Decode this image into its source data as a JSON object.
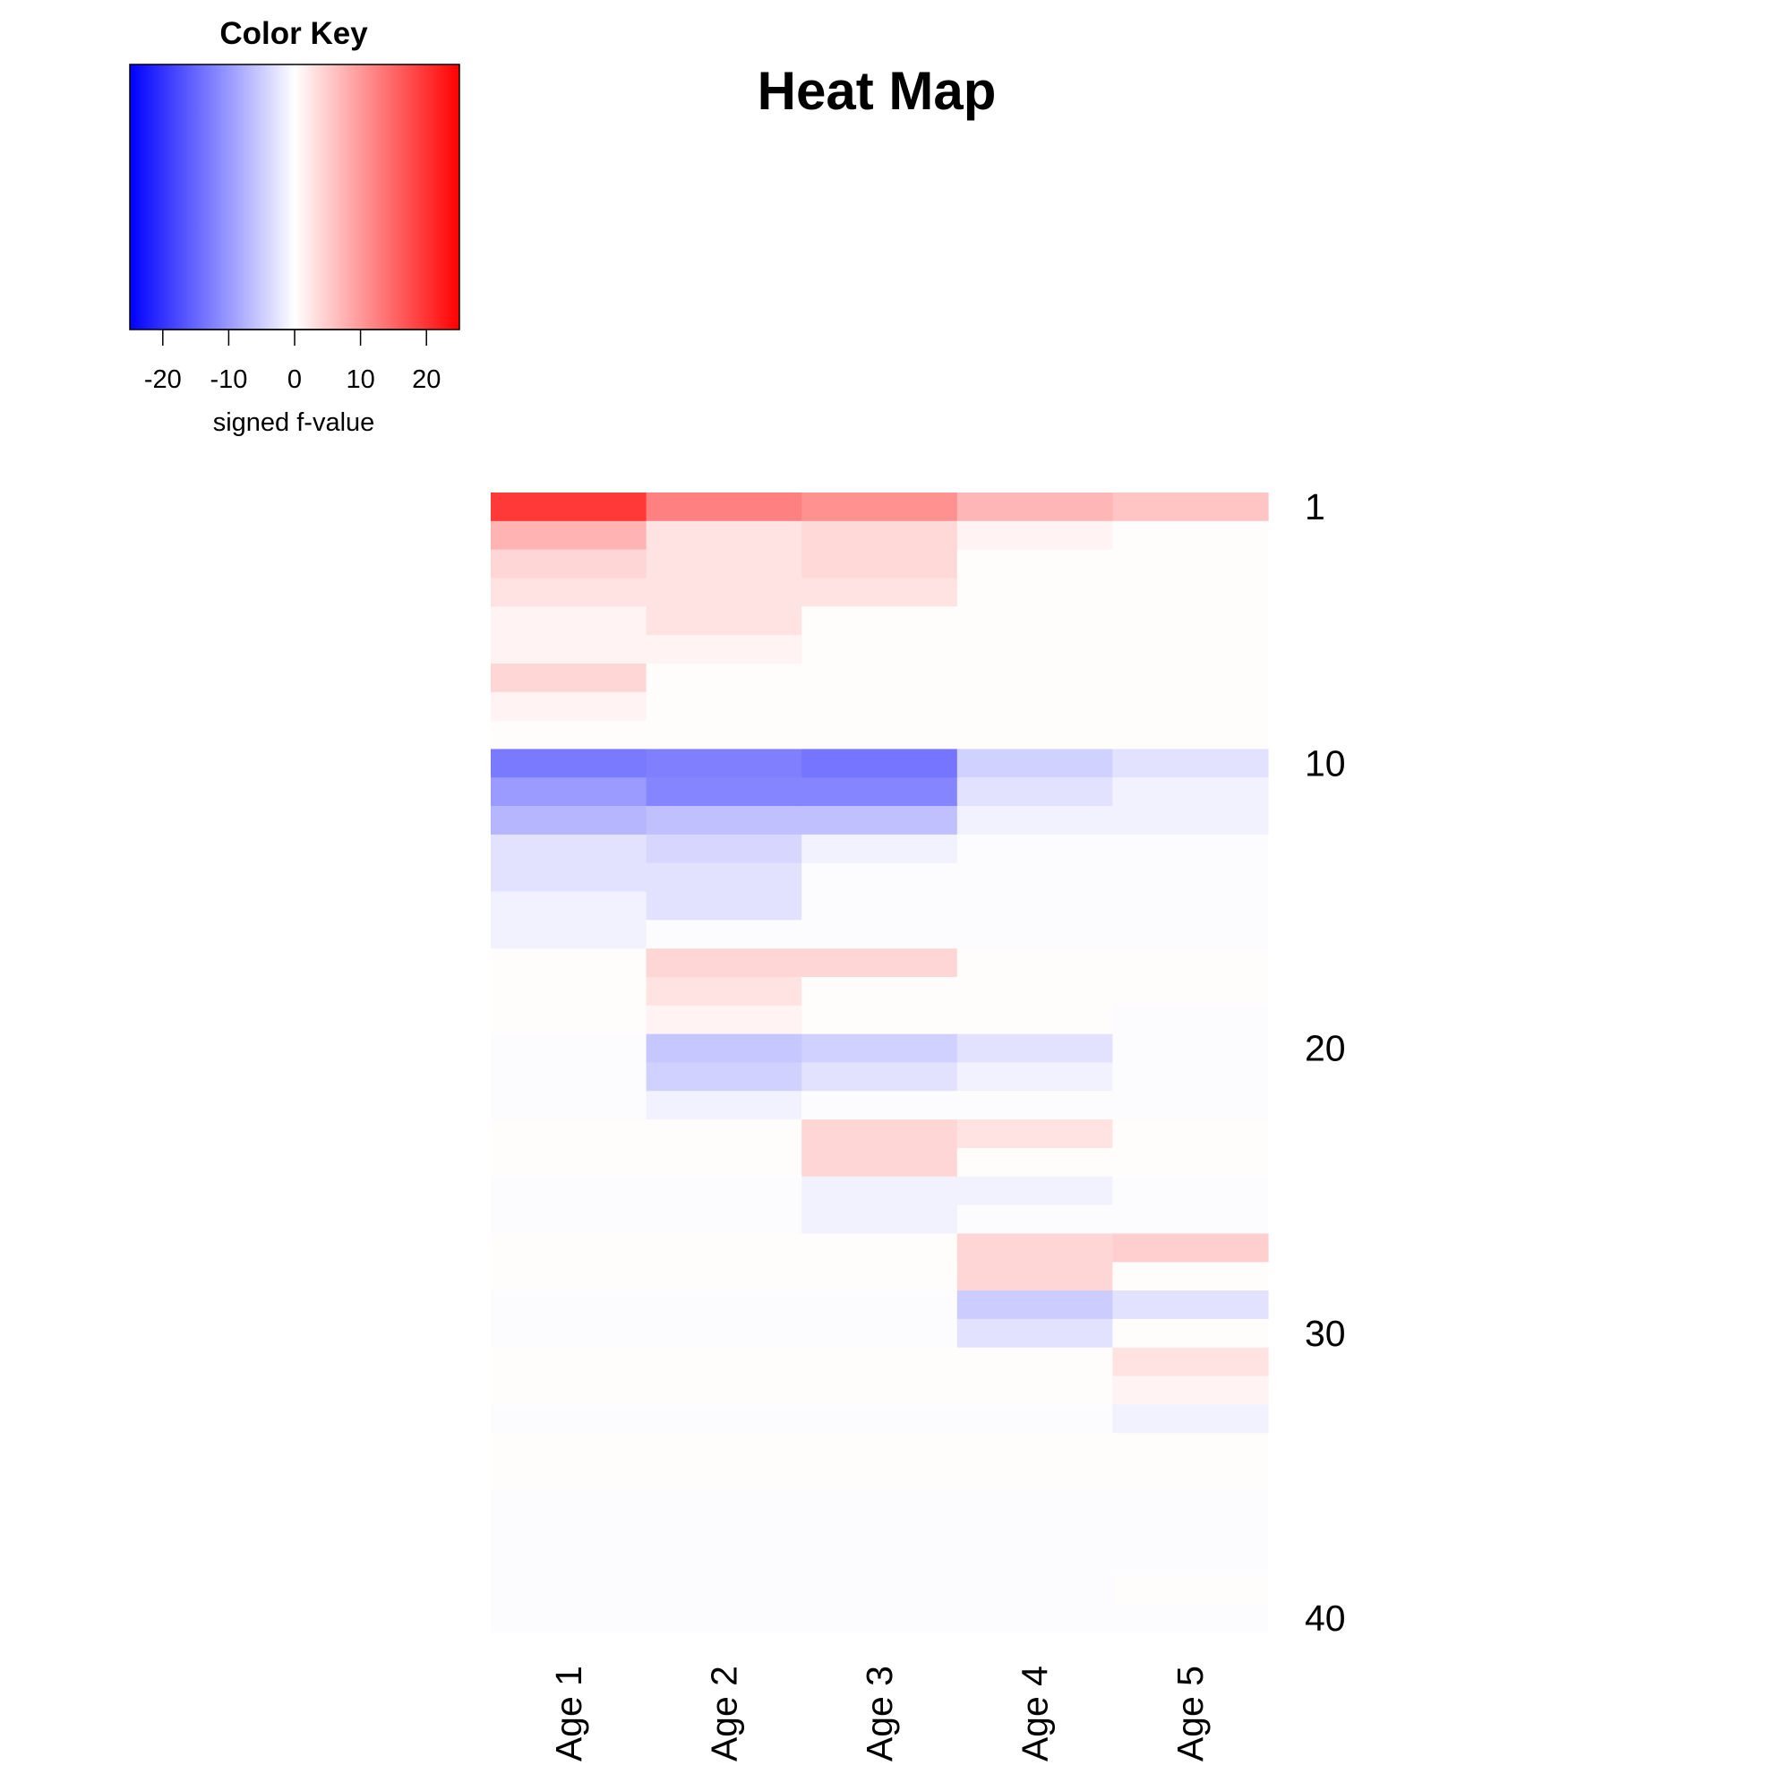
{
  "chart_data": {
    "type": "heatmap",
    "title": "Heat Map",
    "color_key": {
      "title": "Color Key",
      "xlabel": "signed f-value",
      "ticks": [
        -20,
        -10,
        0,
        10,
        20
      ],
      "tick_labels": [
        "-20",
        "-10",
        "0",
        "10",
        "20"
      ],
      "range": [
        -25,
        25
      ],
      "colors": {
        "low": "#0000ff",
        "mid": "#ffffff",
        "high": "#ff0000"
      }
    },
    "columns": [
      "Age 1",
      "Age 2",
      "Age 3",
      "Age 4",
      "Age 5"
    ],
    "row_count": 40,
    "row_labels": [
      {
        "row": 1,
        "label": "1"
      },
      {
        "row": 10,
        "label": "10"
      },
      {
        "row": 20,
        "label": "20"
      },
      {
        "row": 30,
        "label": "30"
      },
      {
        "row": 40,
        "label": "40"
      }
    ],
    "values": [
      [
        19.5,
        12.5,
        10.8,
        7.2,
        5.8
      ],
      [
        7.5,
        2.8,
        3.8,
        1.2,
        0.3
      ],
      [
        4.0,
        2.8,
        3.8,
        0.3,
        0.3
      ],
      [
        2.8,
        2.8,
        2.8,
        0.3,
        0.3
      ],
      [
        1.2,
        2.8,
        0.3,
        0.3,
        0.3
      ],
      [
        1.2,
        1.2,
        0.3,
        0.3,
        0.3
      ],
      [
        4.0,
        0.3,
        0.3,
        0.3,
        0.3
      ],
      [
        1.2,
        0.3,
        0.3,
        0.3,
        0.3
      ],
      [
        0.3,
        0.3,
        0.3,
        0.3,
        0.3
      ],
      [
        -13.0,
        -12.5,
        -13.5,
        -4.5,
        -2.8
      ],
      [
        -9.8,
        -12.0,
        -12.0,
        -2.8,
        -1.3
      ],
      [
        -7.2,
        -6.2,
        -6.2,
        -1.3,
        -1.3
      ],
      [
        -2.8,
        -4.0,
        -1.3,
        -0.3,
        -0.3
      ],
      [
        -2.8,
        -2.8,
        -0.3,
        -0.3,
        -0.3
      ],
      [
        -1.3,
        -2.8,
        -0.3,
        -0.3,
        -0.3
      ],
      [
        -1.3,
        -0.3,
        -0.3,
        -0.3,
        -0.3
      ],
      [
        0.3,
        4.0,
        4.0,
        0.3,
        0.3
      ],
      [
        0.3,
        2.8,
        0.3,
        0.3,
        0.3
      ],
      [
        0.3,
        1.2,
        0.3,
        0.3,
        -0.3
      ],
      [
        -0.3,
        -5.5,
        -4.5,
        -2.8,
        -0.3
      ],
      [
        -0.3,
        -4.5,
        -2.8,
        -1.3,
        -0.3
      ],
      [
        -0.3,
        -1.3,
        -0.3,
        -0.3,
        -0.3
      ],
      [
        0.3,
        0.3,
        4.0,
        2.8,
        0.3
      ],
      [
        0.3,
        0.3,
        4.0,
        0.3,
        0.3
      ],
      [
        -0.3,
        -0.3,
        -1.3,
        -1.3,
        -0.3
      ],
      [
        -0.3,
        -0.3,
        -1.3,
        -0.3,
        -0.3
      ],
      [
        0.3,
        0.3,
        0.3,
        4.0,
        4.8
      ],
      [
        0.3,
        0.3,
        0.3,
        4.0,
        0.3
      ],
      [
        -0.3,
        -0.3,
        -0.3,
        -5.0,
        -2.8
      ],
      [
        -0.3,
        -0.3,
        -0.3,
        -2.8,
        0.3
      ],
      [
        0.3,
        0.3,
        0.3,
        0.3,
        2.8
      ],
      [
        0.3,
        0.3,
        0.3,
        0.3,
        1.2
      ],
      [
        -0.3,
        -0.3,
        -0.3,
        -0.3,
        -1.3
      ],
      [
        0.3,
        0.3,
        0.3,
        0.3,
        0.3
      ],
      [
        0.3,
        0.3,
        0.3,
        0.3,
        0.3
      ],
      [
        -0.3,
        -0.3,
        -0.3,
        -0.3,
        -0.3
      ],
      [
        -0.3,
        -0.3,
        -0.3,
        -0.3,
        -0.3
      ],
      [
        -0.3,
        -0.3,
        -0.3,
        -0.3,
        -0.3
      ],
      [
        -0.3,
        -0.3,
        -0.3,
        -0.3,
        0.3
      ],
      [
        -0.3,
        -0.3,
        -0.3,
        -0.3,
        -0.3
      ]
    ]
  }
}
